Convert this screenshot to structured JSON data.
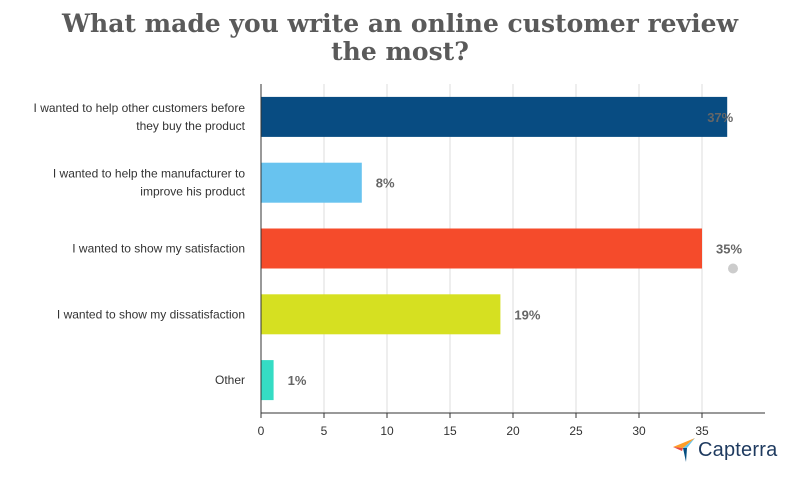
{
  "chart_data": {
    "type": "bar",
    "orientation": "horizontal",
    "title": "What made you write an online customer review the most?",
    "categories": [
      "I wanted to help other customers before they buy the product",
      "I wanted to help the manufacturer to improve his product",
      "I wanted to show my satisfaction",
      "I wanted to show my dissatisfaction",
      "Other"
    ],
    "category_lines": [
      [
        "I wanted to help other customers before",
        "they buy the product"
      ],
      [
        "I wanted to help the manufacturer to",
        "improve his product"
      ],
      [
        "I wanted to show my satisfaction"
      ],
      [
        "I wanted to show my dissatisfaction"
      ],
      [
        "Other"
      ]
    ],
    "values": [
      37,
      8,
      35,
      19,
      1
    ],
    "data_labels": [
      "37%",
      "8%",
      "35%",
      "19%",
      "1%"
    ],
    "colors": [
      "#084c82",
      "#68c3ef",
      "#f54b2b",
      "#d6e021",
      "#35dcc4"
    ],
    "xlim": [
      0,
      40
    ],
    "xticks": [
      0,
      5,
      10,
      15,
      20,
      25,
      30,
      35
    ],
    "xtick_labels": [
      "0",
      "5",
      "10",
      "15",
      "20",
      "25",
      "30",
      "35"
    ],
    "grid": "vertical",
    "xlabel": "",
    "ylabel": ""
  },
  "brand": {
    "name": "Capterra",
    "colors": [
      "#ff9d28",
      "#68c5ed",
      "#044d80",
      "#e54747"
    ]
  }
}
